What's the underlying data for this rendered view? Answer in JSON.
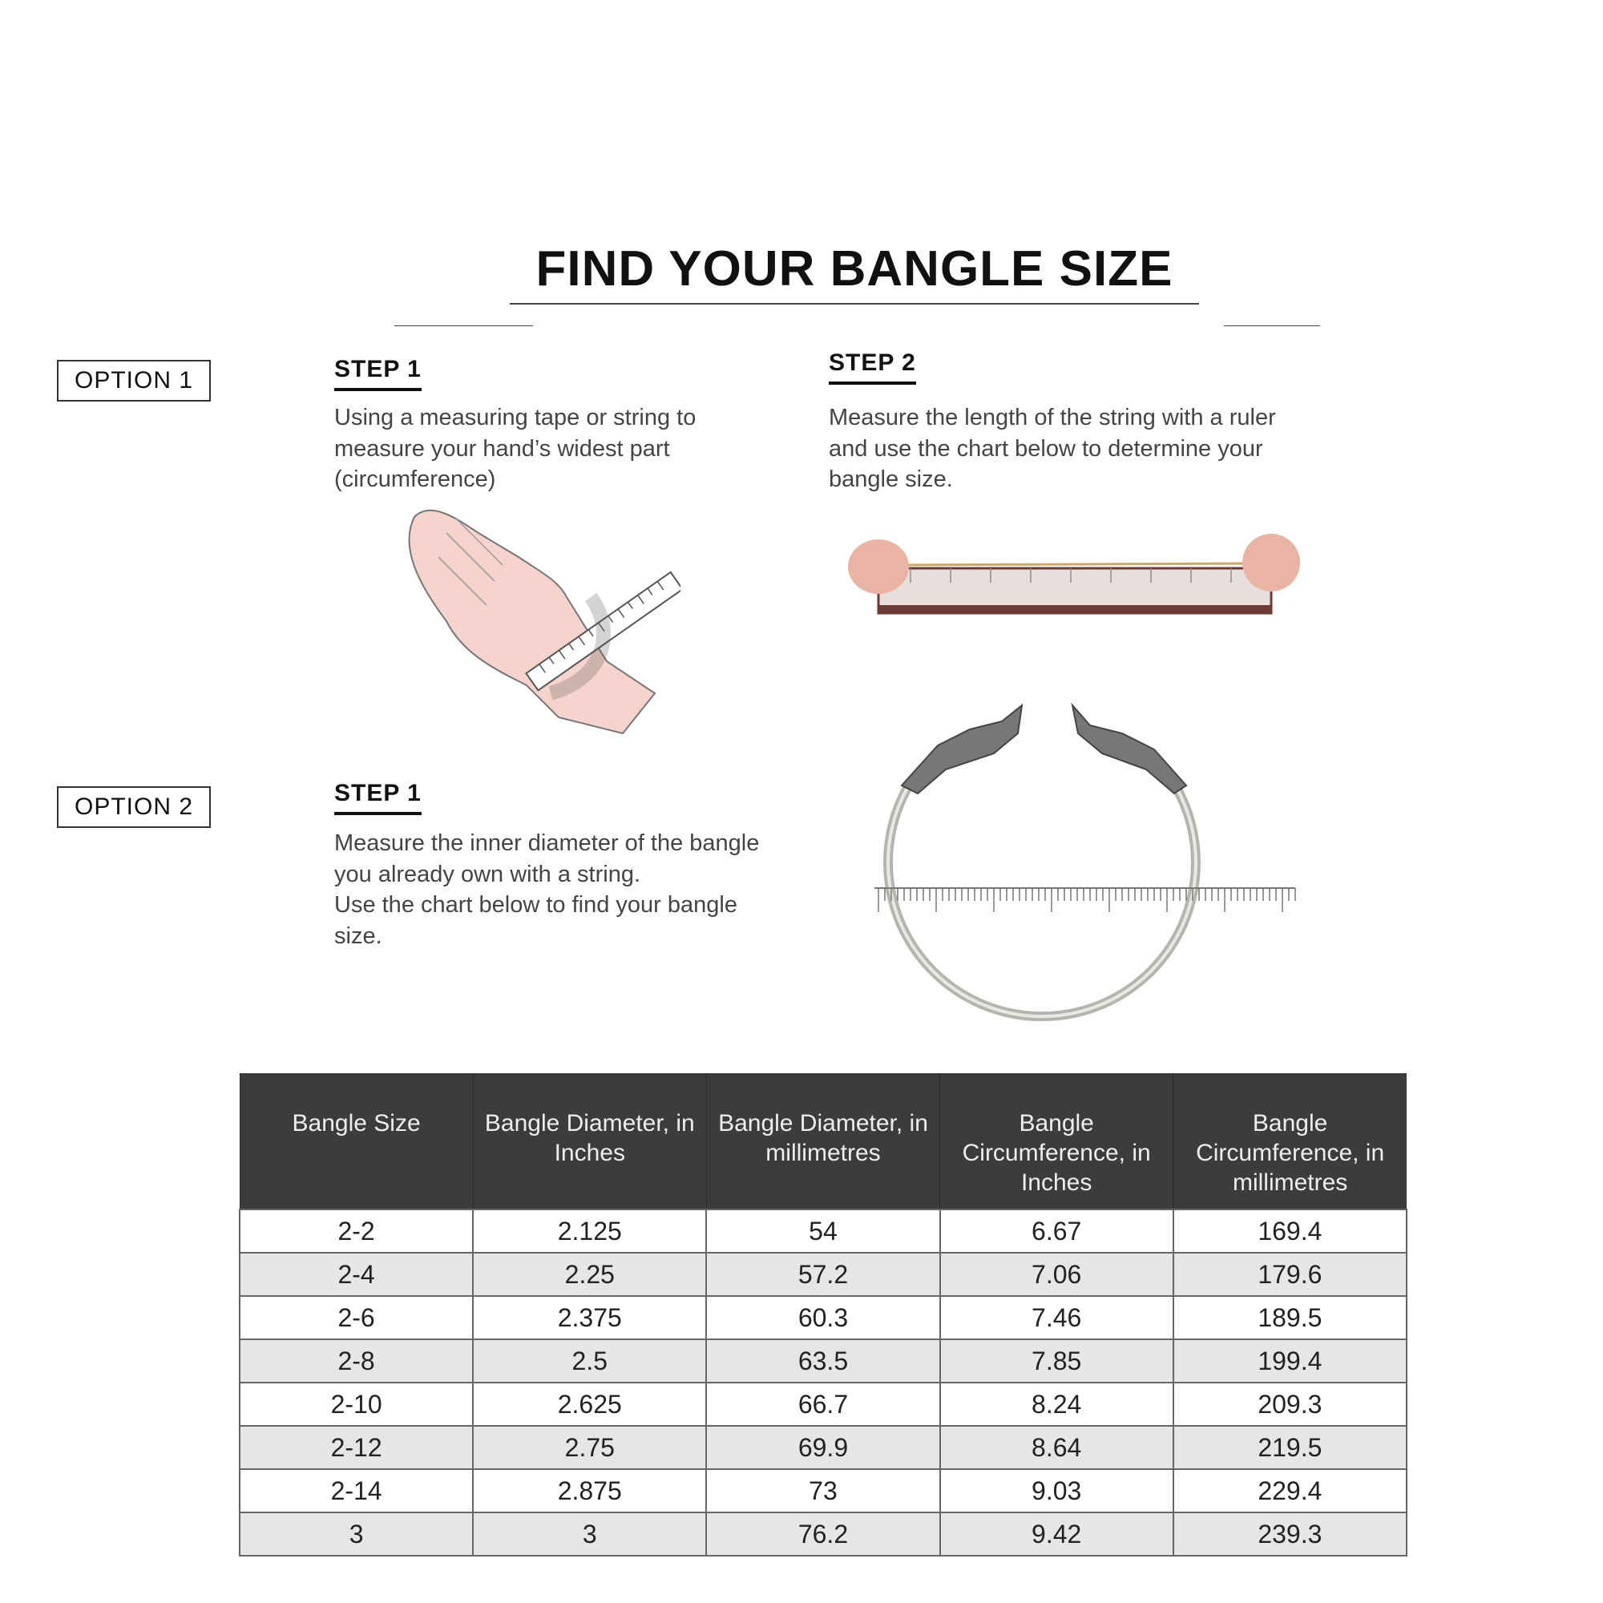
{
  "title": "FIND YOUR BANGLE SIZE",
  "option1": {
    "label": "OPTION 1",
    "step1": {
      "label": "STEP 1",
      "lines": [
        "Using a measuring tape or string to",
        "measure your hand’s widest part",
        "(circumference)"
      ]
    },
    "step2": {
      "label": "STEP 2",
      "lines": [
        "Measure the length of the string with a ruler",
        "and use the chart below to determine your",
        "bangle size."
      ]
    }
  },
  "option2": {
    "label": "OPTION 2",
    "step1": {
      "label": "STEP 1",
      "lines": [
        "Measure the inner diameter of the bangle",
        "you already own with a string.",
        "Use the chart below to find your bangle",
        "size."
      ]
    }
  },
  "table": {
    "headers": [
      "Bangle Size",
      "Bangle Diameter, in Inches",
      "Bangle Diameter, in millimetres",
      "Bangle Circumference, in Inches",
      "Bangle Circumference, in millimetres"
    ],
    "rows": [
      [
        "2-2",
        "2.125",
        "54",
        "6.67",
        "169.4"
      ],
      [
        "2-4",
        "2.25",
        "57.2",
        "7.06",
        "179.6"
      ],
      [
        "2-6",
        "2.375",
        "60.3",
        "7.46",
        "189.5"
      ],
      [
        "2-8",
        "2.5",
        "63.5",
        "7.85",
        "199.4"
      ],
      [
        "2-10",
        "2.625",
        "66.7",
        "8.24",
        "209.3"
      ],
      [
        "2-12",
        "2.75",
        "69.9",
        "8.64",
        "219.5"
      ],
      [
        "2-14",
        "2.875",
        "73",
        "9.03",
        "229.4"
      ],
      [
        "3",
        "3",
        "76.2",
        "9.42",
        "239.3"
      ]
    ]
  },
  "colors": {
    "header_bg": "#3c3c3e",
    "alt_row": "#e6e6e8",
    "text": "#222222"
  }
}
